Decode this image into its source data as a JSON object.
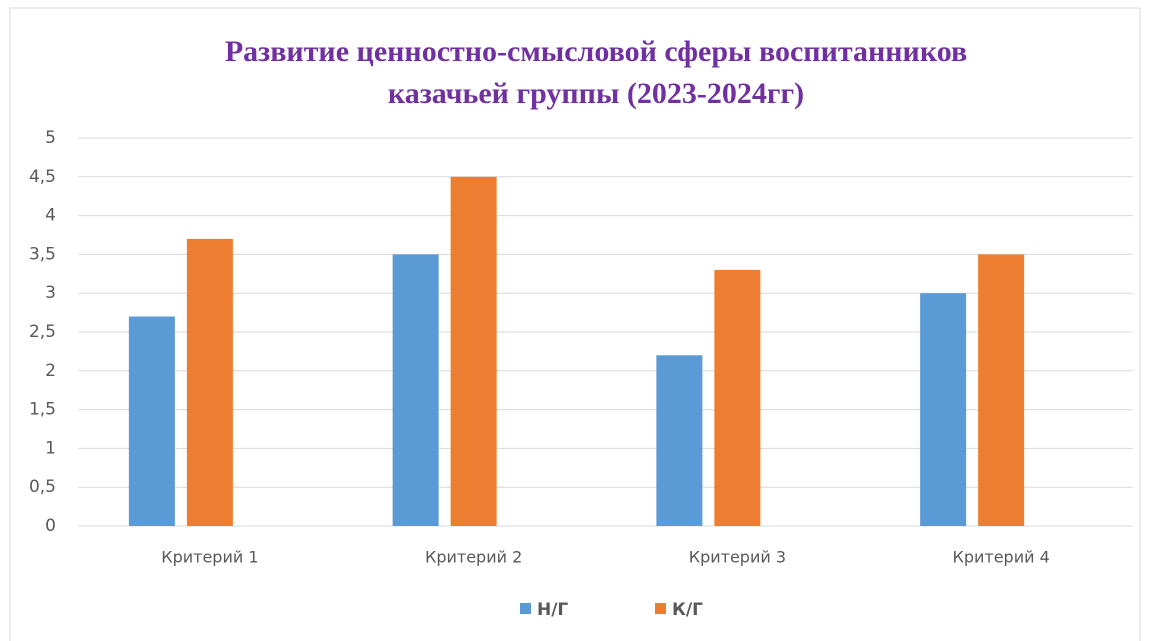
{
  "chart_data": {
    "type": "bar",
    "title": [
      "Развитие ценностно-смысловой  сферы воспитанников",
      "казачьей группы (2023-2024гг)"
    ],
    "categories": [
      "Критерий 1",
      "Критерий 2",
      "Критерий 3",
      "Критерий 4"
    ],
    "series": [
      {
        "name": "Н/Г",
        "color": "#5b9bd5",
        "values": [
          2.7,
          3.5,
          2.2,
          3.0
        ]
      },
      {
        "name": "К/Г",
        "color": "#ed7d31",
        "values": [
          3.7,
          4.5,
          3.3,
          3.5
        ]
      }
    ],
    "ylim": [
      0,
      5
    ],
    "yticks": [
      0,
      {
        "value": 0.5,
        "label": "0,5"
      },
      1,
      {
        "value": 1.5,
        "label": "1,5"
      },
      2,
      {
        "value": 2.5,
        "label": "2,5"
      },
      3,
      {
        "value": 3.5,
        "label": "3,5"
      },
      4,
      {
        "value": 4.5,
        "label": "4,5"
      },
      5
    ],
    "grid": true,
    "legend": "bottom"
  }
}
